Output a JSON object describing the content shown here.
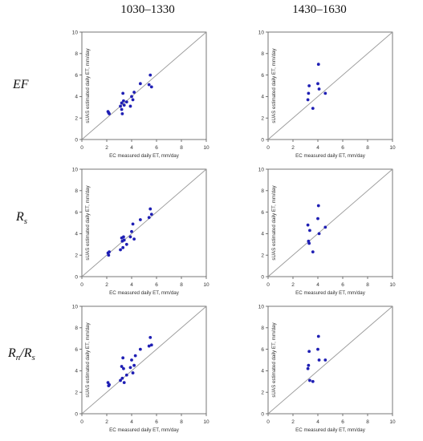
{
  "header": {
    "col1": "1030–1330",
    "col2": "1430–1630"
  },
  "rows": [
    {
      "label_main": "EF",
      "label_sub": ""
    },
    {
      "label_main": "R",
      "label_sub": "s"
    },
    {
      "label_main": "R",
      "label_sub": "n",
      "label_main2": "/R",
      "label_sub2": "s"
    }
  ],
  "chart_data": [
    {
      "type": "scatter",
      "row": "EF",
      "column": "1030–1330",
      "xlabel": "EC measured daily ET, mm/day",
      "ylabel": "sUAS estimated daily ET, mm/day",
      "xlim": [
        0,
        10
      ],
      "ylim": [
        0,
        10
      ],
      "xticks": [
        0,
        2,
        4,
        6,
        8,
        10
      ],
      "yticks": [
        0,
        2,
        4,
        6,
        8,
        10
      ],
      "reference_line": "1:1",
      "marker_color": "#1f1fb4",
      "points": [
        [
          2.1,
          2.6
        ],
        [
          2.15,
          2.5
        ],
        [
          2.2,
          2.4
        ],
        [
          3.1,
          3.1
        ],
        [
          3.2,
          3.4
        ],
        [
          3.2,
          2.8
        ],
        [
          3.25,
          2.4
        ],
        [
          3.3,
          4.3
        ],
        [
          3.35,
          3.6
        ],
        [
          3.4,
          3.2
        ],
        [
          3.6,
          3.5
        ],
        [
          3.9,
          3.1
        ],
        [
          4.0,
          4.0
        ],
        [
          4.1,
          3.7
        ],
        [
          4.2,
          4.4
        ],
        [
          4.7,
          5.2
        ],
        [
          5.4,
          5.1
        ],
        [
          5.5,
          6.0
        ],
        [
          5.6,
          4.9
        ]
      ]
    },
    {
      "type": "scatter",
      "row": "EF",
      "column": "1430–1630",
      "xlabel": "EC measured daily ET, mm/day",
      "ylabel": "sUAS estimated daily ET, mm/day",
      "xlim": [
        0,
        10
      ],
      "ylim": [
        0,
        10
      ],
      "xticks": [
        0,
        2,
        4,
        6,
        8,
        10
      ],
      "yticks": [
        0,
        2,
        4,
        6,
        8,
        10
      ],
      "reference_line": "1:1",
      "marker_color": "#1f1fb4",
      "points": [
        [
          3.2,
          3.7
        ],
        [
          3.25,
          4.3
        ],
        [
          3.3,
          5.0
        ],
        [
          3.6,
          2.9
        ],
        [
          4.0,
          5.2
        ],
        [
          4.05,
          7.0
        ],
        [
          4.1,
          4.7
        ],
        [
          4.6,
          4.3
        ]
      ]
    },
    {
      "type": "scatter",
      "row": "Rs",
      "column": "1030–1330",
      "xlabel": "EC measured daily ET, mm/day",
      "ylabel": "sUAS estimated daily ET, mm/day",
      "xlim": [
        0,
        10
      ],
      "ylim": [
        0,
        10
      ],
      "xticks": [
        0,
        2,
        4,
        6,
        8,
        10
      ],
      "yticks": [
        0,
        2,
        4,
        6,
        8,
        10
      ],
      "reference_line": "1:1",
      "marker_color": "#1f1fb4",
      "points": [
        [
          2.1,
          2.2
        ],
        [
          2.15,
          2.0
        ],
        [
          2.2,
          2.3
        ],
        [
          3.1,
          2.5
        ],
        [
          3.2,
          3.6
        ],
        [
          3.25,
          3.3
        ],
        [
          3.3,
          2.7
        ],
        [
          3.35,
          3.7
        ],
        [
          3.4,
          3.4
        ],
        [
          3.6,
          3.0
        ],
        [
          3.9,
          3.7
        ],
        [
          4.0,
          4.2
        ],
        [
          4.1,
          4.9
        ],
        [
          4.2,
          3.5
        ],
        [
          4.7,
          5.3
        ],
        [
          5.4,
          5.5
        ],
        [
          5.5,
          6.3
        ],
        [
          5.6,
          5.8
        ]
      ]
    },
    {
      "type": "scatter",
      "row": "Rs",
      "column": "1430–1630",
      "xlabel": "EC measured daily ET, mm/day",
      "ylabel": "sUAS estimated daily ET, mm/day",
      "xlim": [
        0,
        10
      ],
      "ylim": [
        0,
        10
      ],
      "xticks": [
        0,
        2,
        4,
        6,
        8,
        10
      ],
      "yticks": [
        0,
        2,
        4,
        6,
        8,
        10
      ],
      "reference_line": "1:1",
      "marker_color": "#1f1fb4",
      "points": [
        [
          3.2,
          4.8
        ],
        [
          3.25,
          3.3
        ],
        [
          3.3,
          3.1
        ],
        [
          3.35,
          4.3
        ],
        [
          3.6,
          2.3
        ],
        [
          4.0,
          5.4
        ],
        [
          4.05,
          6.6
        ],
        [
          4.1,
          4.0
        ],
        [
          4.6,
          4.6
        ]
      ]
    },
    {
      "type": "scatter",
      "row": "Rn/Rs",
      "column": "1030–1330",
      "xlabel": "EC measured daily ET, mm/day",
      "ylabel": "sUAS estimated daily ET, mm/day",
      "xlim": [
        0,
        10
      ],
      "ylim": [
        0,
        10
      ],
      "xticks": [
        0,
        2,
        4,
        6,
        8,
        10
      ],
      "yticks": [
        0,
        2,
        4,
        6,
        8,
        10
      ],
      "reference_line": "1:1",
      "marker_color": "#1f1fb4",
      "points": [
        [
          2.1,
          2.9
        ],
        [
          2.15,
          2.6
        ],
        [
          2.2,
          2.7
        ],
        [
          3.1,
          3.1
        ],
        [
          3.2,
          4.4
        ],
        [
          3.25,
          3.3
        ],
        [
          3.3,
          5.2
        ],
        [
          3.35,
          4.2
        ],
        [
          3.4,
          2.9
        ],
        [
          3.6,
          3.6
        ],
        [
          3.9,
          4.3
        ],
        [
          4.0,
          5.0
        ],
        [
          4.1,
          3.8
        ],
        [
          4.2,
          4.5
        ],
        [
          4.3,
          5.4
        ],
        [
          4.7,
          6.0
        ],
        [
          5.4,
          6.3
        ],
        [
          5.5,
          7.1
        ],
        [
          5.6,
          6.4
        ]
      ]
    },
    {
      "type": "scatter",
      "row": "Rn/Rs",
      "column": "1430–1630",
      "xlabel": "EC measured daily ET, mm/day",
      "ylabel": "sUAS estimated daily ET, mm/day",
      "xlim": [
        0,
        10
      ],
      "ylim": [
        0,
        10
      ],
      "xticks": [
        0,
        2,
        4,
        6,
        8,
        10
      ],
      "yticks": [
        0,
        2,
        4,
        6,
        8,
        10
      ],
      "reference_line": "1:1",
      "marker_color": "#1f1fb4",
      "points": [
        [
          3.2,
          4.2
        ],
        [
          3.25,
          4.5
        ],
        [
          3.3,
          5.8
        ],
        [
          3.35,
          3.1
        ],
        [
          3.6,
          3.0
        ],
        [
          4.0,
          6.0
        ],
        [
          4.05,
          7.2
        ],
        [
          4.1,
          5.0
        ],
        [
          4.6,
          5.0
        ]
      ]
    }
  ]
}
